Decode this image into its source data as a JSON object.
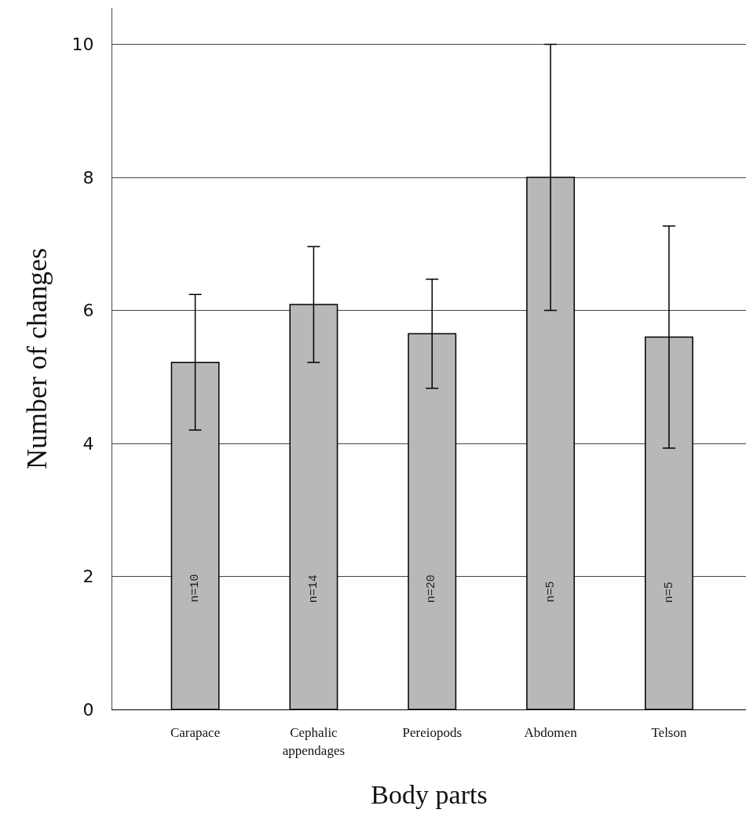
{
  "chart_data": {
    "type": "bar",
    "xlabel": "Body parts",
    "ylabel": "Number of changes",
    "categories": [
      "Carapace",
      "Cephalic appendages",
      "Pereiopods",
      "Abdomen",
      "Telson"
    ],
    "values": [
      5.22,
      6.09,
      5.65,
      8.0,
      5.6
    ],
    "errors": [
      1.02,
      0.87,
      0.82,
      2.0,
      1.67
    ],
    "color": "#b8b8b8",
    "ylim": [
      0,
      10.55
    ],
    "yticks": [
      0,
      2,
      4,
      6,
      8,
      10
    ],
    "grid": "y",
    "annotations": [
      "n=10",
      "n=14",
      "n=20",
      "n=5",
      "n=5"
    ]
  }
}
